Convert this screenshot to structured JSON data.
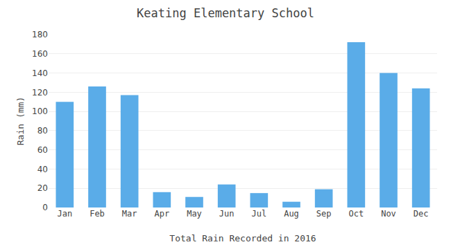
{
  "chart_data": {
    "type": "bar",
    "title": "Keating Elementary School",
    "xlabel": "Total Rain Recorded in 2016",
    "ylabel": "Rain (mm)",
    "categories": [
      "Jan",
      "Feb",
      "Mar",
      "Apr",
      "May",
      "Jun",
      "Jul",
      "Aug",
      "Sep",
      "Oct",
      "Nov",
      "Dec"
    ],
    "values": [
      110,
      126,
      117,
      16,
      11,
      24,
      15,
      6,
      19,
      172,
      140,
      124
    ],
    "color": "#5aace8",
    "ylim": [
      0,
      180
    ],
    "yticks": [
      0,
      20,
      40,
      60,
      80,
      100,
      120,
      140,
      160,
      180
    ],
    "grid": true
  }
}
